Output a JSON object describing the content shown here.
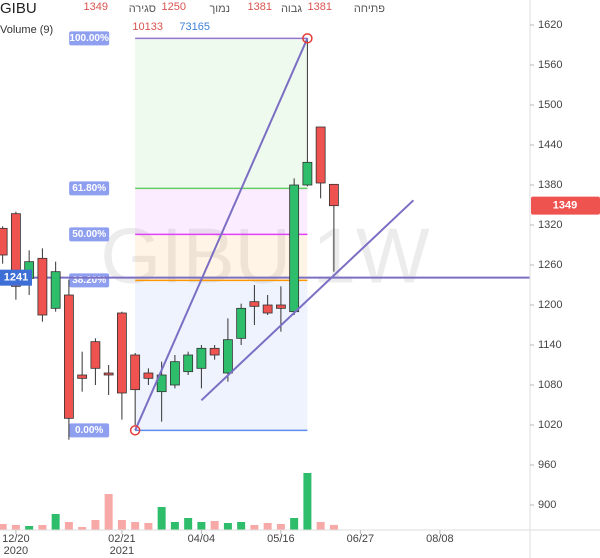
{
  "chart_data": {
    "type": "candlestick",
    "symbol": "GIBU",
    "indicator": "Volume (9)",
    "watermark": "GIBU 1W",
    "header": {
      "open_label": "פתיחה",
      "high_label": "גבוה",
      "low_label": "נמוך",
      "close_label": "סגירה",
      "volume_ma": 73165
    },
    "x": [
      0,
      1,
      2,
      3,
      4,
      5,
      6,
      7,
      8,
      9,
      10,
      11,
      12,
      13,
      14,
      15,
      16,
      17,
      18,
      19,
      20,
      21,
      22,
      23,
      24,
      25
    ],
    "open": [
      1315,
      1337,
      1240,
      1270,
      1195,
      1215,
      1095,
      1145,
      1098,
      1188,
      1125,
      1098,
      1070,
      1080,
      1100,
      1105,
      1135,
      1098,
      1150,
      1205,
      1200,
      1200,
      1190,
      1380,
      1467,
      1381
    ],
    "high": [
      1318,
      1340,
      1282,
      1285,
      1265,
      1238,
      1130,
      1150,
      1110,
      1190,
      1128,
      1105,
      1115,
      1125,
      1130,
      1140,
      1140,
      1180,
      1202,
      1230,
      1215,
      1228,
      1390,
      1600,
      1467,
      1381
    ],
    "low": [
      1262,
      1208,
      1215,
      1175,
      1190,
      998,
      1070,
      1080,
      1065,
      1028,
      1020,
      1080,
      1025,
      1075,
      1095,
      1075,
      1118,
      1085,
      1140,
      1170,
      1185,
      1160,
      1185,
      1378,
      1360,
      1250
    ],
    "close": [
      1275,
      1228,
      1265,
      1185,
      1250,
      1030,
      1090,
      1105,
      1095,
      1068,
      1073,
      1090,
      1095,
      1115,
      1125,
      1135,
      1125,
      1148,
      1195,
      1198,
      1188,
      1195,
      1380,
      1414,
      1383,
      1349
    ],
    "volume": [
      12000,
      10000,
      8000,
      10000,
      32000,
      16000,
      6000,
      20000,
      72000,
      20000,
      16000,
      14000,
      46000,
      16000,
      24000,
      16000,
      18000,
      14000,
      16000,
      10000,
      14000,
      12000,
      24000,
      114000,
      16000,
      10133
    ],
    "volume_lim": [
      0,
      120000
    ],
    "up_color": "#2ebd6b",
    "down_color": "#ef5350",
    "xlim": [
      -0.2,
      39.8
    ],
    "ylim": [
      862.5,
      1657.5
    ],
    "yticks": [
      900,
      960,
      1020,
      1080,
      1140,
      1200,
      1260,
      1320,
      1380,
      1440,
      1500,
      1560,
      1620
    ],
    "xticks": [
      {
        "value": 1,
        "label": "12/20",
        "sub": "2020"
      },
      {
        "value": 9,
        "label": "02/21",
        "sub": "2021"
      },
      {
        "value": 15,
        "label": "04/04"
      },
      {
        "value": 21,
        "label": "05/16"
      },
      {
        "value": 27,
        "label": "06/27"
      },
      {
        "value": 33,
        "label": "08/08"
      }
    ],
    "fib": {
      "x_start": 10,
      "x_end": 23,
      "levels": [
        {
          "label": "100.00%",
          "value": 1600,
          "color": "#9575cd"
        },
        {
          "label": "61.80%",
          "value": 1375,
          "color": "#66cc66"
        },
        {
          "label": "50.00%",
          "value": 1306,
          "color": "#e040fb"
        },
        {
          "label": "38.20%",
          "value": 1237,
          "color": "#ff9800"
        },
        {
          "label": "0.00%",
          "value": 1012,
          "color": "#5b8def"
        }
      ]
    },
    "hline": {
      "value": 1241,
      "label": "1241",
      "color": "#7b6fc4"
    },
    "trendlines": [
      {
        "x": [
          10,
          23
        ],
        "y": [
          1012,
          1600
        ],
        "color": "#7b6fc4"
      },
      {
        "x": [
          15,
          31
        ],
        "y": [
          1057,
          1357
        ],
        "color": "#7b6fc4"
      }
    ]
  }
}
